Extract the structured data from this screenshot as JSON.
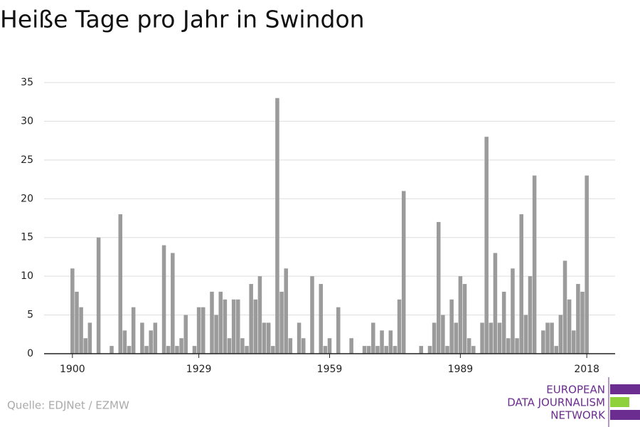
{
  "chart_data": {
    "type": "bar",
    "title": "Heiße Tage pro Jahr in Swindon",
    "source": "Quelle: EDJNet / EZMW",
    "logo": [
      "EUROPEAN",
      "DATA JOURNALISM",
      "NETWORK"
    ],
    "x": [
      1900,
      1901,
      1902,
      1903,
      1904,
      1905,
      1906,
      1907,
      1908,
      1909,
      1910,
      1911,
      1912,
      1913,
      1914,
      1915,
      1916,
      1917,
      1918,
      1919,
      1920,
      1921,
      1922,
      1923,
      1924,
      1925,
      1926,
      1927,
      1928,
      1929,
      1930,
      1931,
      1932,
      1933,
      1934,
      1935,
      1936,
      1937,
      1938,
      1939,
      1940,
      1941,
      1942,
      1943,
      1944,
      1945,
      1946,
      1947,
      1948,
      1949,
      1950,
      1951,
      1952,
      1953,
      1954,
      1955,
      1956,
      1957,
      1958,
      1959,
      1960,
      1961,
      1962,
      1963,
      1964,
      1965,
      1966,
      1967,
      1968,
      1969,
      1970,
      1971,
      1972,
      1973,
      1974,
      1975,
      1976,
      1977,
      1978,
      1979,
      1980,
      1981,
      1982,
      1983,
      1984,
      1985,
      1986,
      1987,
      1988,
      1989,
      1990,
      1991,
      1992,
      1993,
      1994,
      1995,
      1996,
      1997,
      1998,
      1999,
      2000,
      2001,
      2002,
      2003,
      2004,
      2005,
      2006,
      2007,
      2008,
      2009,
      2010,
      2011,
      2012,
      2013,
      2014,
      2015,
      2016,
      2017,
      2018
    ],
    "values": [
      11,
      8,
      6,
      2,
      4,
      0,
      15,
      0,
      0,
      1,
      0,
      18,
      3,
      1,
      6,
      0,
      4,
      1,
      3,
      4,
      0,
      14,
      1,
      13,
      1,
      2,
      5,
      0,
      1,
      6,
      6,
      0,
      8,
      5,
      8,
      7,
      2,
      7,
      7,
      2,
      1,
      9,
      7,
      10,
      4,
      4,
      1,
      33,
      8,
      11,
      2,
      0,
      4,
      2,
      0,
      10,
      0,
      9,
      1,
      2,
      0,
      6,
      0,
      0,
      2,
      0,
      0,
      1,
      1,
      4,
      1,
      3,
      1,
      3,
      1,
      7,
      21,
      0,
      0,
      0,
      1,
      0,
      1,
      4,
      17,
      5,
      1,
      7,
      4,
      10,
      9,
      2,
      1,
      0,
      4,
      28,
      4,
      13,
      4,
      8,
      2,
      11,
      2,
      18,
      5,
      10,
      23,
      0,
      3,
      4,
      4,
      1,
      5,
      12,
      7,
      3,
      9,
      8,
      23
    ],
    "color": "#9b9b9b",
    "xlim": [
      1893.5,
      2024.5
    ],
    "xticks": [
      1900,
      1929,
      1959,
      1989,
      2018
    ],
    "ylim": [
      0,
      35
    ],
    "yticks": [
      0,
      5,
      10,
      15,
      20,
      25,
      30,
      35
    ],
    "grid": true
  }
}
